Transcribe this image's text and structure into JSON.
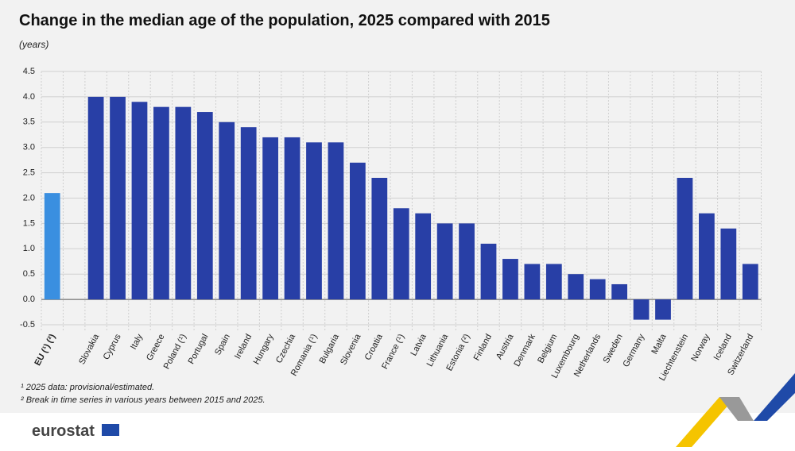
{
  "chart_data": {
    "type": "bar",
    "title": "Change in the median age of the population, 2025 compared with 2015",
    "subtitle": "(years)",
    "categories": [
      "EU (¹) (²)",
      null,
      "Slovakia",
      "Cyprus",
      "Italy",
      "Greece",
      "Poland (¹)",
      "Portugal",
      "Spain",
      "Ireland",
      "Hungary",
      "Czechia",
      "Romania (¹)",
      "Bulgaria",
      "Slovenia",
      "Croatia",
      "France (¹)",
      "Latvia",
      "Lithuania",
      "Estonia (²)",
      "Finland",
      "Austria",
      "Denmark",
      "Belgium",
      "Luxembourg",
      "Netherlands",
      "Sweden",
      "Germany",
      "Malta",
      "Liechtenstein",
      "Norway",
      "Iceland",
      "Switzerland"
    ],
    "values": [
      2.1,
      null,
      4.0,
      4.0,
      3.9,
      3.8,
      3.8,
      3.7,
      3.5,
      3.4,
      3.2,
      3.2,
      3.1,
      3.1,
      2.7,
      2.4,
      1.8,
      1.7,
      1.5,
      1.5,
      1.1,
      0.8,
      0.7,
      0.7,
      0.5,
      0.4,
      0.3,
      -0.4,
      -0.4,
      2.4,
      1.7,
      1.4,
      0.7
    ],
    "colors": [
      "#3a8fe0",
      null,
      "#283fa6",
      "#283fa6",
      "#283fa6",
      "#283fa6",
      "#283fa6",
      "#283fa6",
      "#283fa6",
      "#283fa6",
      "#283fa6",
      "#283fa6",
      "#283fa6",
      "#283fa6",
      "#283fa6",
      "#283fa6",
      "#283fa6",
      "#283fa6",
      "#283fa6",
      "#283fa6",
      "#283fa6",
      "#283fa6",
      "#283fa6",
      "#283fa6",
      "#283fa6",
      "#283fa6",
      "#283fa6",
      "#283fa6",
      "#283fa6",
      "#283fa6",
      "#283fa6",
      "#283fa6",
      "#283fa6"
    ],
    "ylim": [
      -0.5,
      4.5
    ],
    "yticks": [
      -0.5,
      {
        "value": 0,
        "label": "0.0"
      },
      0.5,
      {
        "value": 1,
        "label": "1.0"
      },
      1.5,
      {
        "value": 2,
        "label": "2.0"
      },
      2.5,
      {
        "value": 3,
        "label": "3.0"
      },
      3.5,
      {
        "value": 4,
        "label": "4.0"
      },
      4.5
    ],
    "grid": true,
    "footnotes": [
      "¹ 2025 data: provisional/estimated.",
      "² Break in time series in various years between 2015 and 2025."
    ],
    "source": "eurostat"
  }
}
